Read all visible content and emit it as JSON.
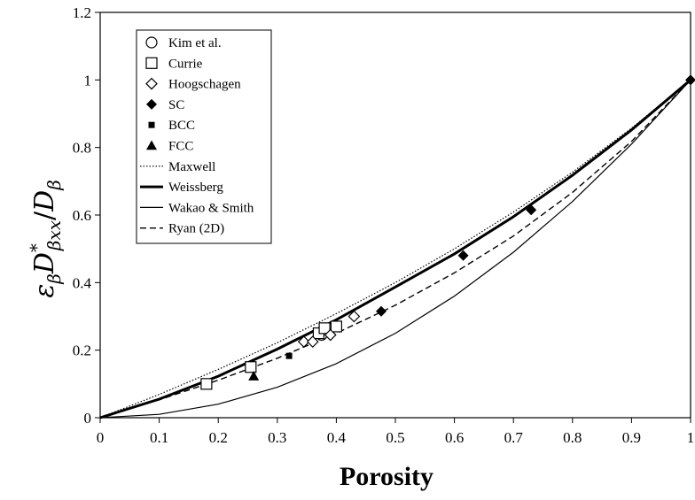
{
  "chart_data": {
    "type": "scatter",
    "xlabel": "Porosity",
    "ylabel_parts": {
      "eps": "ε",
      "eps_sub": "β",
      "D1": "D",
      "D1_star": "*",
      "D1_sub": "βxx",
      "slash": "/",
      "D2": "D",
      "D2_sub": "β"
    },
    "xlim": [
      0,
      1
    ],
    "ylim": [
      0,
      1.2
    ],
    "xticks": [
      0,
      0.1,
      0.2,
      0.3,
      0.4,
      0.5,
      0.6,
      0.7,
      0.8,
      0.9,
      1
    ],
    "xtick_labels": [
      "0",
      "0.1",
      "0.2",
      "0.3",
      "0.4",
      "0.5",
      "0.6",
      "0.7",
      "0.8",
      "0.9",
      "1"
    ],
    "yticks": [
      0,
      0.2,
      0.4,
      0.6,
      0.8,
      1,
      1.2
    ],
    "ytick_labels": [
      "0",
      "0.2",
      "0.4",
      "0.6",
      "0.8",
      "1",
      "1.2"
    ],
    "grid": false,
    "legend_position": "top-left",
    "series": [
      {
        "name": "Kim et al.",
        "kind": "marker",
        "marker": "circle-open",
        "x": [
          0.375
        ],
        "y": [
          0.245
        ]
      },
      {
        "name": "Currie",
        "kind": "marker",
        "marker": "square-open",
        "x": [
          0.18,
          0.255,
          0.37,
          0.38,
          0.4
        ],
        "y": [
          0.1,
          0.15,
          0.25,
          0.265,
          0.27
        ]
      },
      {
        "name": "Hoogschagen",
        "kind": "marker",
        "marker": "diamond-open",
        "x": [
          0.345,
          0.36,
          0.39,
          0.43
        ],
        "y": [
          0.225,
          0.225,
          0.245,
          0.3
        ]
      },
      {
        "name": "SC",
        "kind": "marker",
        "marker": "diamond-filled",
        "x": [
          0.476,
          0.615,
          0.73,
          1.0
        ],
        "y": [
          0.315,
          0.48,
          0.615,
          1.0
        ]
      },
      {
        "name": "BCC",
        "kind": "marker",
        "marker": "square-filled",
        "x": [
          0.32
        ],
        "y": [
          0.183
        ]
      },
      {
        "name": "FCC",
        "kind": "marker",
        "marker": "triangle-filled",
        "x": [
          0.26
        ],
        "y": [
          0.123
        ]
      },
      {
        "name": "Maxwell",
        "kind": "line",
        "dash": "dotted",
        "width": 1.2,
        "x": [
          0,
          0.1,
          0.2,
          0.3,
          0.4,
          0.5,
          0.6,
          0.7,
          0.8,
          0.9,
          1.0
        ],
        "y": [
          0,
          0.069,
          0.143,
          0.222,
          0.308,
          0.4,
          0.5,
          0.609,
          0.727,
          0.857,
          1.0
        ]
      },
      {
        "name": "Weissberg",
        "kind": "line",
        "dash": "solid",
        "width": 3,
        "x": [
          0,
          0.1,
          0.2,
          0.3,
          0.4,
          0.5,
          0.6,
          0.7,
          0.8,
          0.9,
          1.0
        ],
        "y": [
          0,
          0.055,
          0.123,
          0.203,
          0.29,
          0.387,
          0.485,
          0.595,
          0.718,
          0.852,
          1.0
        ]
      },
      {
        "name": "Wakao & Smith",
        "kind": "line",
        "dash": "solid",
        "width": 1.2,
        "x": [
          0,
          0.1,
          0.2,
          0.3,
          0.4,
          0.5,
          0.6,
          0.7,
          0.8,
          0.9,
          1.0
        ],
        "y": [
          0,
          0.01,
          0.04,
          0.09,
          0.16,
          0.25,
          0.36,
          0.49,
          0.64,
          0.81,
          1.0
        ]
      },
      {
        "name": "Ryan (2D)",
        "kind": "line",
        "dash": "dashed",
        "width": 1.4,
        "x": [
          0,
          0.1,
          0.2,
          0.3,
          0.4,
          0.5,
          0.6,
          0.7,
          0.8,
          0.9,
          1.0
        ],
        "y": [
          0,
          0.053,
          0.111,
          0.176,
          0.25,
          0.333,
          0.429,
          0.538,
          0.667,
          0.818,
          1.0
        ]
      }
    ]
  }
}
